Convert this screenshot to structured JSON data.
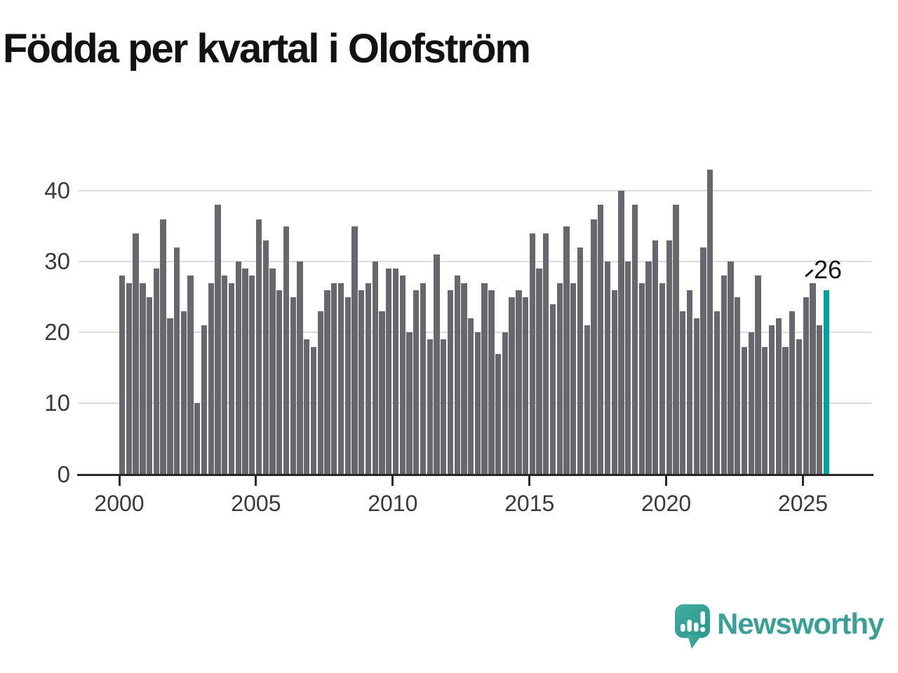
{
  "title": "Födda per kvartal i Olofström",
  "annotation": {
    "text": "26"
  },
  "logo": {
    "text": "Newsworthy"
  },
  "colors": {
    "bar": "#67676d",
    "highlight": "#02a29b",
    "grid": "#dadada",
    "axis": "#26262b",
    "tick_label": "#3a3a3a",
    "title": "#121212",
    "logo": "#3aa096"
  },
  "chart_data": {
    "type": "bar",
    "title": "Födda per kvartal i Olofström",
    "xlabel": "",
    "ylabel": "",
    "first_period": "2000-Q1",
    "last_period": "2025-Q4",
    "periods_per_year": 4,
    "start_year": 2000,
    "series": [
      {
        "name": "Födda per kvartal",
        "values": [
          28,
          27,
          34,
          27,
          25,
          29,
          36,
          22,
          32,
          23,
          28,
          10,
          21,
          27,
          38,
          28,
          27,
          30,
          29,
          28,
          36,
          33,
          29,
          26,
          35,
          25,
          30,
          19,
          18,
          23,
          26,
          27,
          27,
          25,
          35,
          26,
          27,
          30,
          23,
          29,
          29,
          28,
          20,
          26,
          27,
          19,
          31,
          19,
          26,
          28,
          27,
          22,
          20,
          27,
          26,
          17,
          20,
          25,
          26,
          25,
          34,
          29,
          34,
          24,
          27,
          35,
          27,
          32,
          21,
          36,
          38,
          30,
          26,
          40,
          30,
          38,
          27,
          30,
          33,
          27,
          33,
          38,
          23,
          26,
          22,
          32,
          43,
          23,
          28,
          30,
          25,
          18,
          20,
          28,
          18,
          21,
          22,
          18,
          23,
          19,
          25,
          27,
          21,
          26
        ]
      }
    ],
    "highlight": {
      "period": "2025-Q4",
      "index": 103,
      "value": 26,
      "label": "26"
    },
    "ylim": [
      0,
      45
    ],
    "yticks": [
      0,
      10,
      20,
      30,
      40
    ],
    "xticks": [
      2000,
      2005,
      2010,
      2015,
      2020,
      2025
    ],
    "grid": "horizontal-only",
    "legend": "none"
  }
}
